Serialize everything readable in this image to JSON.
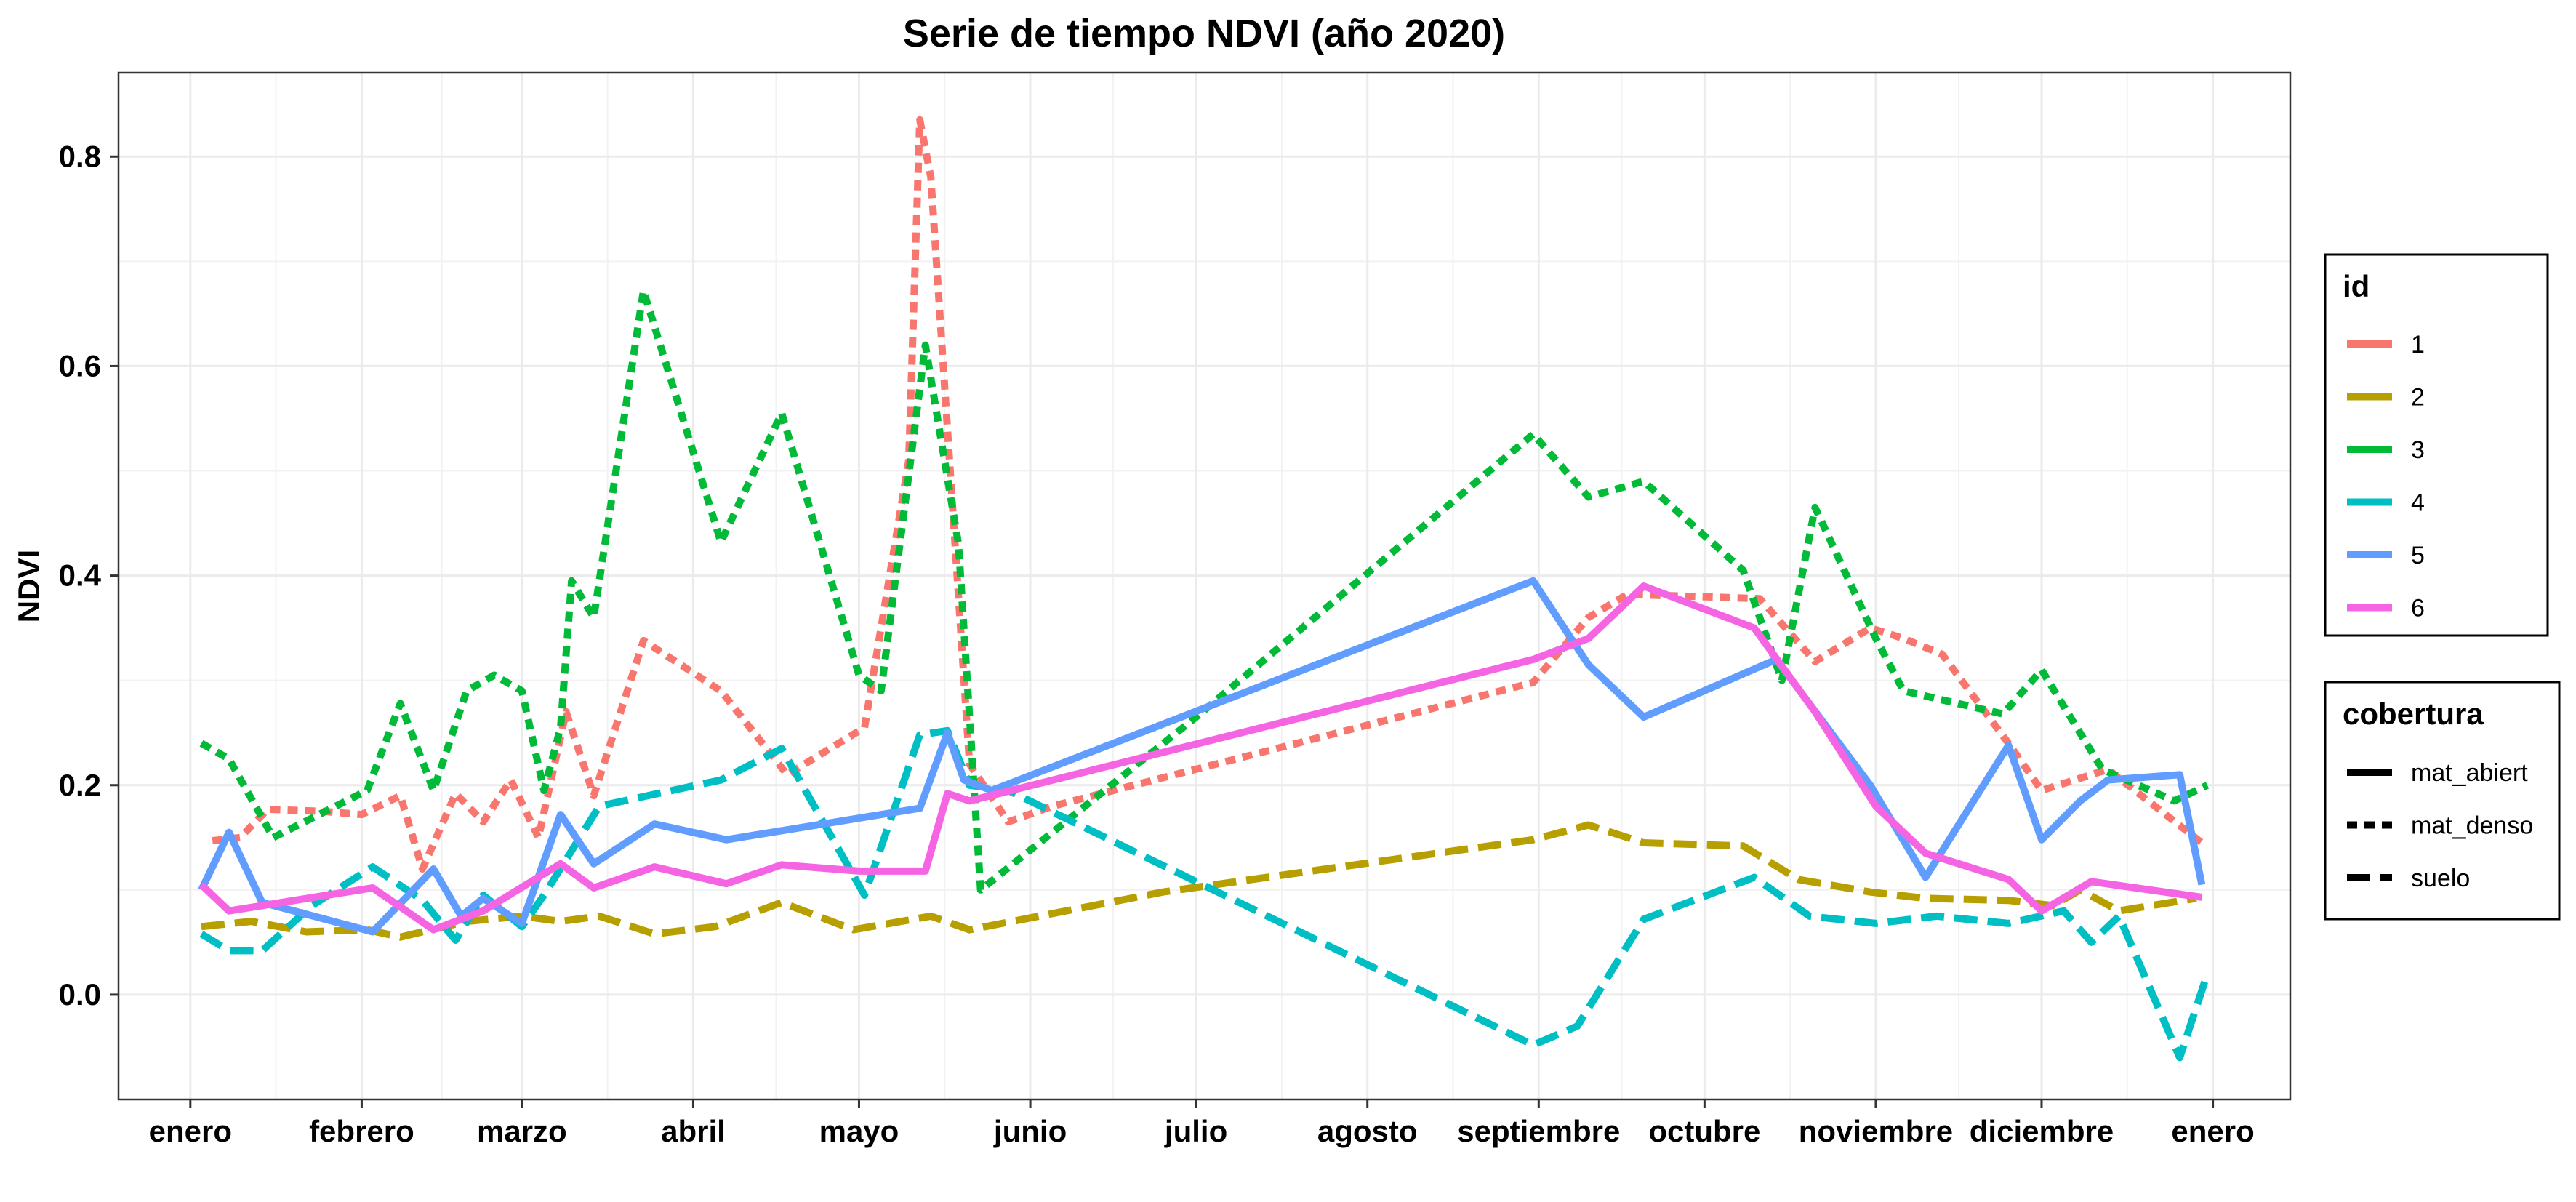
{
  "chart_data": {
    "type": "line",
    "title": "Serie de tiempo NDVI (año 2020)",
    "xlabel": "",
    "ylabel": "NDVI",
    "x_unit": "date",
    "xlim": [
      "2019-12-19",
      "2021-01-15"
    ],
    "ylim": [
      -0.1,
      0.88
    ],
    "y_ticks": [
      0.0,
      0.2,
      0.4,
      0.6,
      0.8
    ],
    "x_ticks": [
      {
        "date": "2020-01-01",
        "label": "enero"
      },
      {
        "date": "2020-02-01",
        "label": "febrero"
      },
      {
        "date": "2020-03-01",
        "label": "marzo"
      },
      {
        "date": "2020-04-01",
        "label": "abril"
      },
      {
        "date": "2020-05-01",
        "label": "mayo"
      },
      {
        "date": "2020-06-01",
        "label": "junio"
      },
      {
        "date": "2020-07-01",
        "label": "julio"
      },
      {
        "date": "2020-08-01",
        "label": "agosto"
      },
      {
        "date": "2020-09-01",
        "label": "septiembre"
      },
      {
        "date": "2020-10-01",
        "label": "octubre"
      },
      {
        "date": "2020-11-01",
        "label": "noviembre"
      },
      {
        "date": "2020-12-01",
        "label": "diciembre"
      },
      {
        "date": "2021-01-01",
        "label": "enero"
      }
    ],
    "grid": true,
    "legend_placement": "right",
    "legends": {
      "id": {
        "title": "id",
        "entries": [
          {
            "label": "1",
            "color": "#F8766D"
          },
          {
            "label": "2",
            "color": "#B79F00"
          },
          {
            "label": "3",
            "color": "#00BA38"
          },
          {
            "label": "4",
            "color": "#00BFC4"
          },
          {
            "label": "5",
            "color": "#619CFF"
          },
          {
            "label": "6",
            "color": "#F564E3"
          }
        ]
      },
      "cobertura": {
        "title": "cobertura",
        "entries": [
          {
            "label": "mat_abiert",
            "linetype": "solid"
          },
          {
            "label": "mat_denso",
            "linetype": "dotted"
          },
          {
            "label": "suelo",
            "linetype": "dashed"
          }
        ]
      }
    },
    "series": [
      {
        "name": "1",
        "color": "#F8766D",
        "linetype": "dotted",
        "points": [
          [
            "2020-01-05",
            0.147
          ],
          [
            "2020-01-10",
            0.15
          ],
          [
            "2020-01-15",
            0.177
          ],
          [
            "2020-01-25",
            0.175
          ],
          [
            "2020-02-01",
            0.172
          ],
          [
            "2020-02-08",
            0.19
          ],
          [
            "2020-02-12",
            0.12
          ],
          [
            "2020-02-18",
            0.192
          ],
          [
            "2020-02-23",
            0.165
          ],
          [
            "2020-02-28",
            0.205
          ],
          [
            "2020-03-04",
            0.15
          ],
          [
            "2020-03-09",
            0.27
          ],
          [
            "2020-03-14",
            0.19
          ],
          [
            "2020-03-23",
            0.338
          ],
          [
            "2020-04-06",
            0.29
          ],
          [
            "2020-04-18",
            0.21
          ],
          [
            "2020-05-02",
            0.255
          ],
          [
            "2020-05-10",
            0.51
          ],
          [
            "2020-05-12",
            0.835
          ],
          [
            "2020-05-14",
            0.78
          ],
          [
            "2020-05-21",
            0.22
          ],
          [
            "2020-05-28",
            0.165
          ],
          [
            "2020-06-05",
            0.18
          ],
          [
            "2020-08-31",
            0.298
          ],
          [
            "2020-09-10",
            0.36
          ],
          [
            "2020-09-17",
            0.382
          ],
          [
            "2020-09-30",
            0.38
          ],
          [
            "2020-10-11",
            0.378
          ],
          [
            "2020-10-21",
            0.318
          ],
          [
            "2020-10-31",
            0.35
          ],
          [
            "2020-11-06",
            0.34
          ],
          [
            "2020-11-13",
            0.325
          ],
          [
            "2020-11-25",
            0.24
          ],
          [
            "2020-12-01",
            0.195
          ],
          [
            "2020-12-13",
            0.215
          ],
          [
            "2020-12-30",
            0.145
          ]
        ]
      },
      {
        "name": "2",
        "color": "#B79F00",
        "linetype": "dashed",
        "points": [
          [
            "2020-01-03",
            0.065
          ],
          [
            "2020-01-12",
            0.07
          ],
          [
            "2020-01-22",
            0.06
          ],
          [
            "2020-02-02",
            0.062
          ],
          [
            "2020-02-08",
            0.055
          ],
          [
            "2020-02-20",
            0.07
          ],
          [
            "2020-03-01",
            0.075
          ],
          [
            "2020-03-08",
            0.07
          ],
          [
            "2020-03-15",
            0.075
          ],
          [
            "2020-03-25",
            0.058
          ],
          [
            "2020-04-05",
            0.065
          ],
          [
            "2020-04-17",
            0.088
          ],
          [
            "2020-04-30",
            0.062
          ],
          [
            "2020-05-14",
            0.075
          ],
          [
            "2020-05-21",
            0.062
          ],
          [
            "2020-06-25",
            0.098
          ],
          [
            "2020-08-31",
            0.148
          ],
          [
            "2020-09-10",
            0.162
          ],
          [
            "2020-09-20",
            0.145
          ],
          [
            "2020-10-08",
            0.142
          ],
          [
            "2020-10-18",
            0.11
          ],
          [
            "2020-10-31",
            0.098
          ],
          [
            "2020-11-10",
            0.092
          ],
          [
            "2020-11-25",
            0.09
          ],
          [
            "2020-12-03",
            0.085
          ],
          [
            "2020-12-08",
            0.1
          ],
          [
            "2020-12-15",
            0.08
          ],
          [
            "2020-12-29",
            0.092
          ]
        ]
      },
      {
        "name": "3",
        "color": "#00BA38",
        "linetype": "dotted",
        "points": [
          [
            "2020-01-03",
            0.24
          ],
          [
            "2020-01-08",
            0.225
          ],
          [
            "2020-01-16",
            0.15
          ],
          [
            "2020-02-02",
            0.195
          ],
          [
            "2020-02-08",
            0.278
          ],
          [
            "2020-02-14",
            0.195
          ],
          [
            "2020-02-20",
            0.29
          ],
          [
            "2020-02-25",
            0.305
          ],
          [
            "2020-03-01",
            0.29
          ],
          [
            "2020-03-05",
            0.195
          ],
          [
            "2020-03-08",
            0.255
          ],
          [
            "2020-03-10",
            0.395
          ],
          [
            "2020-03-14",
            0.36
          ],
          [
            "2020-03-23",
            0.672
          ],
          [
            "2020-04-06",
            0.432
          ],
          [
            "2020-04-17",
            0.555
          ],
          [
            "2020-05-01",
            0.305
          ],
          [
            "2020-05-05",
            0.29
          ],
          [
            "2020-05-13",
            0.62
          ],
          [
            "2020-05-19",
            0.43
          ],
          [
            "2020-05-23",
            0.1
          ],
          [
            "2020-07-01",
            0.265
          ],
          [
            "2020-08-31",
            0.535
          ],
          [
            "2020-09-10",
            0.475
          ],
          [
            "2020-09-20",
            0.49
          ],
          [
            "2020-10-08",
            0.405
          ],
          [
            "2020-10-15",
            0.3
          ],
          [
            "2020-10-21",
            0.465
          ],
          [
            "2020-11-01",
            0.34
          ],
          [
            "2020-11-06",
            0.29
          ],
          [
            "2020-11-24",
            0.268
          ],
          [
            "2020-12-01",
            0.31
          ],
          [
            "2020-12-12",
            0.215
          ],
          [
            "2020-12-25",
            0.185
          ],
          [
            "2020-12-31",
            0.2
          ]
        ]
      },
      {
        "name": "4",
        "color": "#00BFC4",
        "linetype": "dashed",
        "points": [
          [
            "2020-01-03",
            0.058
          ],
          [
            "2020-01-08",
            0.042
          ],
          [
            "2020-01-14",
            0.042
          ],
          [
            "2020-01-23",
            0.085
          ],
          [
            "2020-02-03",
            0.122
          ],
          [
            "2020-02-12",
            0.09
          ],
          [
            "2020-02-18",
            0.052
          ],
          [
            "2020-02-23",
            0.095
          ],
          [
            "2020-03-01",
            0.065
          ],
          [
            "2020-03-05",
            0.095
          ],
          [
            "2020-03-15",
            0.18
          ],
          [
            "2020-04-06",
            0.205
          ],
          [
            "2020-04-17",
            0.235
          ],
          [
            "2020-05-02",
            0.095
          ],
          [
            "2020-05-12",
            0.248
          ],
          [
            "2020-05-17",
            0.252
          ],
          [
            "2020-05-21",
            0.2
          ],
          [
            "2020-05-28",
            0.195
          ],
          [
            "2020-08-31",
            -0.048
          ],
          [
            "2020-09-08",
            -0.03
          ],
          [
            "2020-09-20",
            0.072
          ],
          [
            "2020-10-10",
            0.112
          ],
          [
            "2020-10-20",
            0.075
          ],
          [
            "2020-11-01",
            0.068
          ],
          [
            "2020-11-12",
            0.075
          ],
          [
            "2020-11-25",
            0.068
          ],
          [
            "2020-12-05",
            0.08
          ],
          [
            "2020-12-10",
            0.05
          ],
          [
            "2020-12-15",
            0.075
          ],
          [
            "2020-12-26",
            -0.06
          ],
          [
            "2020-12-31",
            0.02
          ]
        ]
      },
      {
        "name": "5",
        "color": "#619CFF",
        "linetype": "solid",
        "points": [
          [
            "2020-01-03",
            0.1
          ],
          [
            "2020-01-08",
            0.155
          ],
          [
            "2020-01-14",
            0.088
          ],
          [
            "2020-02-03",
            0.06
          ],
          [
            "2020-02-14",
            0.12
          ],
          [
            "2020-02-19",
            0.075
          ],
          [
            "2020-02-23",
            0.092
          ],
          [
            "2020-03-01",
            0.068
          ],
          [
            "2020-03-08",
            0.172
          ],
          [
            "2020-03-14",
            0.125
          ],
          [
            "2020-03-25",
            0.163
          ],
          [
            "2020-04-07",
            0.148
          ],
          [
            "2020-05-12",
            0.178
          ],
          [
            "2020-05-17",
            0.25
          ],
          [
            "2020-05-20",
            0.205
          ],
          [
            "2020-05-25",
            0.195
          ],
          [
            "2020-08-31",
            0.395
          ],
          [
            "2020-09-10",
            0.315
          ],
          [
            "2020-09-20",
            0.265
          ],
          [
            "2020-10-14",
            0.32
          ],
          [
            "2020-10-31",
            0.2
          ],
          [
            "2020-11-10",
            0.112
          ],
          [
            "2020-11-25",
            0.238
          ],
          [
            "2020-12-01",
            0.148
          ],
          [
            "2020-12-08",
            0.185
          ],
          [
            "2020-12-13",
            0.205
          ],
          [
            "2020-12-26",
            0.21
          ],
          [
            "2020-12-30",
            0.105
          ]
        ]
      },
      {
        "name": "6",
        "color": "#F564E3",
        "linetype": "solid",
        "points": [
          [
            "2020-01-03",
            0.105
          ],
          [
            "2020-01-08",
            0.08
          ],
          [
            "2020-01-14",
            0.085
          ],
          [
            "2020-02-03",
            0.102
          ],
          [
            "2020-02-14",
            0.062
          ],
          [
            "2020-02-23",
            0.08
          ],
          [
            "2020-03-08",
            0.125
          ],
          [
            "2020-03-14",
            0.102
          ],
          [
            "2020-03-25",
            0.122
          ],
          [
            "2020-04-07",
            0.106
          ],
          [
            "2020-04-17",
            0.124
          ],
          [
            "2020-05-01",
            0.118
          ],
          [
            "2020-05-13",
            0.118
          ],
          [
            "2020-05-17",
            0.192
          ],
          [
            "2020-05-21",
            0.185
          ],
          [
            "2020-08-31",
            0.32
          ],
          [
            "2020-09-10",
            0.34
          ],
          [
            "2020-09-20",
            0.39
          ],
          [
            "2020-10-10",
            0.35
          ],
          [
            "2020-10-21",
            0.27
          ],
          [
            "2020-11-01",
            0.18
          ],
          [
            "2020-11-10",
            0.135
          ],
          [
            "2020-11-25",
            0.11
          ],
          [
            "2020-12-01",
            0.08
          ],
          [
            "2020-12-10",
            0.108
          ],
          [
            "2020-12-30",
            0.093
          ]
        ]
      }
    ]
  }
}
